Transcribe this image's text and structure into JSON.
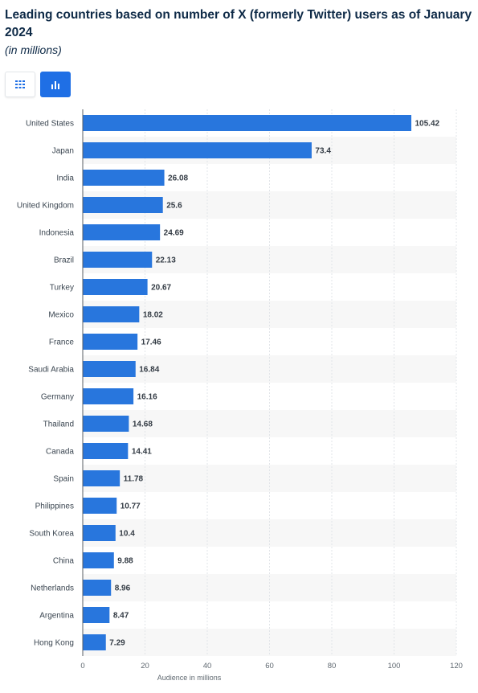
{
  "header": {
    "title": "Leading countries based on number of X (formerly Twitter) users as of January 2024",
    "subtitle": "(in millions)"
  },
  "view_toggle": {
    "table_icon": "grid-icon",
    "chart_icon": "bar-chart-icon",
    "active": "chart",
    "accent_color": "#1f6fe5"
  },
  "chart_data": {
    "type": "bar",
    "orientation": "horizontal",
    "categories": [
      "United States",
      "Japan",
      "India",
      "United Kingdom",
      "Indonesia",
      "Brazil",
      "Turkey",
      "Mexico",
      "France",
      "Saudi Arabia",
      "Germany",
      "Thailand",
      "Canada",
      "Spain",
      "Philippines",
      "South Korea",
      "China",
      "Netherlands",
      "Argentina",
      "Hong Kong"
    ],
    "values": [
      105.42,
      73.4,
      26.08,
      25.6,
      24.69,
      22.13,
      20.67,
      18.02,
      17.46,
      16.84,
      16.16,
      14.68,
      14.41,
      11.78,
      10.77,
      10.4,
      9.88,
      8.96,
      8.47,
      7.29
    ],
    "value_labels": [
      "105.42",
      "73.4",
      "26.08",
      "25.6",
      "24.69",
      "22.13",
      "20.67",
      "18.02",
      "17.46",
      "16.84",
      "16.16",
      "14.68",
      "14.41",
      "11.78",
      "10.77",
      "10.4",
      "9.88",
      "8.96",
      "8.47",
      "7.29"
    ],
    "xlabel": "Audience in millions",
    "ylabel": "",
    "xlim": [
      0,
      120
    ],
    "ticks": [
      "0",
      "20",
      "40",
      "60",
      "80",
      "100",
      "120"
    ],
    "grid": true,
    "bar_color": "#2876dd"
  }
}
